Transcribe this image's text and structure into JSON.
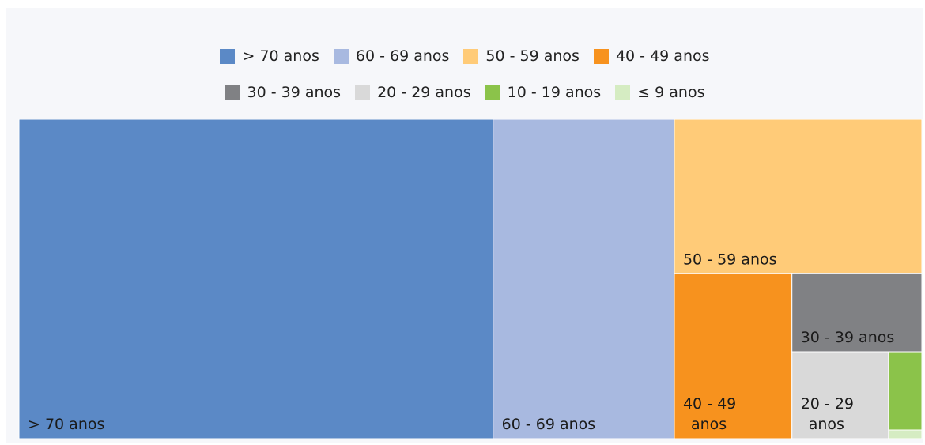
{
  "chart_data": {
    "type": "treemap",
    "legend_position": "top",
    "series": [
      {
        "name": "> 70 anos",
        "value": 52.3,
        "color": "#5b89c6",
        "label_lines": [
          "> 70 anos"
        ],
        "label_color": "#1a1a1a"
      },
      {
        "name": "60 - 69 anos",
        "value": 20.0,
        "color": "#a8b9e0",
        "label_lines": [
          "60 - 69 anos"
        ],
        "label_color": "#1a1a1a"
      },
      {
        "name": "50 - 59 anos",
        "value": 13.2,
        "color": "#ffcb78",
        "label_lines": [
          "50 - 59 anos"
        ],
        "label_color": "#1a1a1a"
      },
      {
        "name": "40 - 49 anos",
        "value": 6.7,
        "color": "#f7921e",
        "label_lines": [
          "40 - 49",
          "anos"
        ],
        "label_color": "#1a1a1a"
      },
      {
        "name": "30 - 39 anos",
        "value": 3.5,
        "color": "#808184",
        "label_lines": [
          "30 - 39 anos"
        ],
        "label_color": "#1a1a1a"
      },
      {
        "name": "20 - 29 anos",
        "value": 2.9,
        "color": "#d9d9d9",
        "label_lines": [
          "20 - 29",
          "anos"
        ],
        "label_color": "#1a1a1a"
      },
      {
        "name": "10 - 19 anos",
        "value": 0.9,
        "color": "#8bc34a",
        "label_lines": [],
        "label_color": "#1a1a1a"
      },
      {
        "name": "≤ 9 anos",
        "value": 0.1,
        "color": "#d5ecc2",
        "label_lines": [],
        "label_color": "#1a1a1a"
      }
    ]
  }
}
